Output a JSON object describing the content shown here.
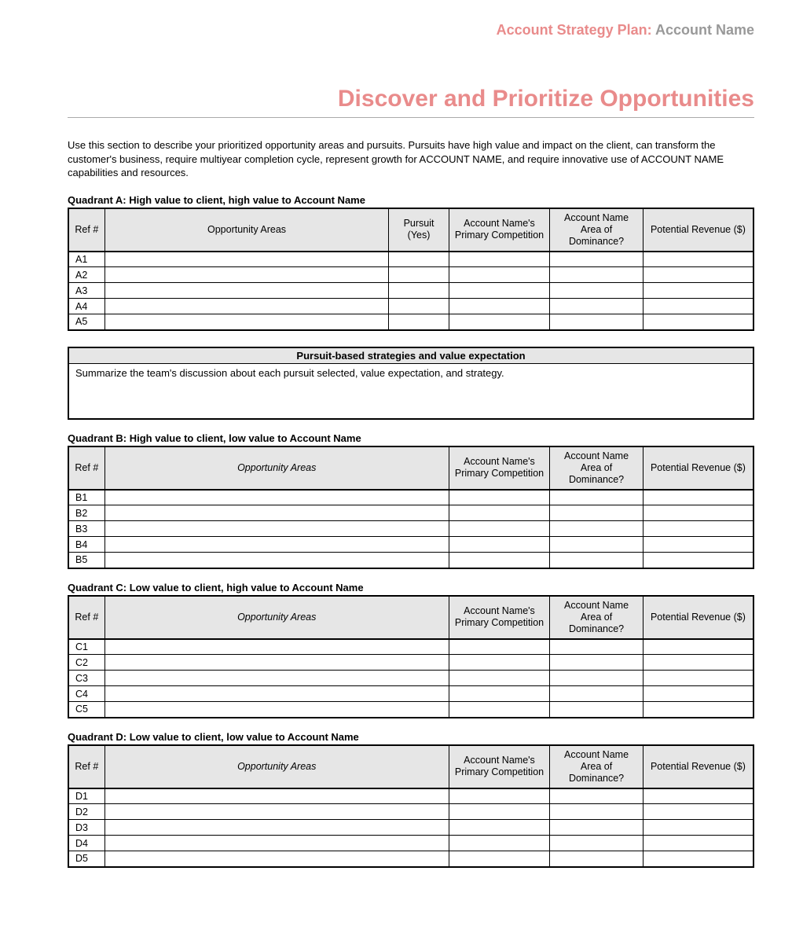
{
  "header": {
    "prefix": "Account Strategy Plan:",
    "account": "Account Name"
  },
  "title": "Discover and Prioritize Opportunities",
  "intro": "Use this section to describe your prioritized opportunity areas and pursuits.  Pursuits have high value and impact on the client, can transform the customer's business, require multiyear completion cycle, represent growth for ACCOUNT NAME, and require innovative use of ACCOUNT NAME capabilities and resources.",
  "columns": {
    "ref": "Ref #",
    "opp": "Opportunity Areas",
    "pursuit": "Pursuit (Yes)",
    "competition": "Account Name's Primary Competition",
    "dominance": "Account Name Area of Dominance?",
    "revenue": "Potential Revenue ($)"
  },
  "strategy": {
    "header": "Pursuit-based strategies and value expectation",
    "body": "Summarize the team's discussion about each pursuit selected, value expectation, and strategy."
  },
  "quadrants": {
    "A": {
      "title": "Quadrant A: High value to client, high value to Account Name",
      "has_pursuit": true,
      "opp_italic": false,
      "refs": [
        "A1",
        "A2",
        "A3",
        "A4",
        "A5"
      ]
    },
    "B": {
      "title": "Quadrant B: High value to client, low value to Account Name",
      "has_pursuit": false,
      "opp_italic": true,
      "refs": [
        "B1",
        "B2",
        "B3",
        "B4",
        "B5"
      ]
    },
    "C": {
      "title": "Quadrant C: Low value to client, high value to Account Name",
      "has_pursuit": false,
      "opp_italic": true,
      "refs": [
        "C1",
        "C2",
        "C3",
        "C4",
        "C5"
      ]
    },
    "D": {
      "title": "Quadrant D: Low value to client, low value to Account Name",
      "has_pursuit": false,
      "opp_italic": true,
      "refs": [
        "D1",
        "D2",
        "D3",
        "D4",
        "D5"
      ]
    }
  }
}
